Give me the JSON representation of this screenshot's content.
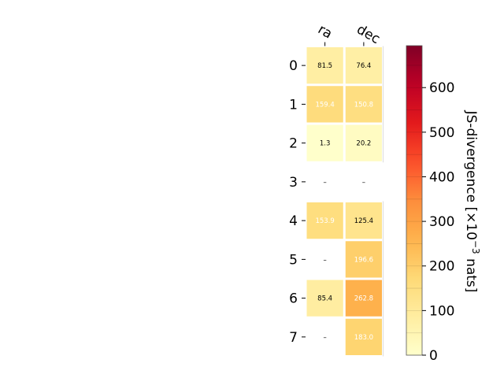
{
  "chart_data": {
    "type": "heatmap",
    "columns": [
      "ra",
      "dec"
    ],
    "rows": [
      "0",
      "1",
      "2",
      "3",
      "4",
      "5",
      "6",
      "7"
    ],
    "values": [
      [
        81.5,
        76.4
      ],
      [
        159.4,
        150.8
      ],
      [
        1.3,
        20.2
      ],
      [
        null,
        null
      ],
      [
        153.9,
        125.4
      ],
      [
        null,
        196.6
      ],
      [
        85.4,
        262.8
      ],
      [
        null,
        183.0
      ]
    ],
    "cell_labels": [
      [
        "81.5",
        "76.4"
      ],
      [
        "159.4",
        "150.8"
      ],
      [
        "1.3",
        "20.2"
      ],
      [
        "–",
        "–"
      ],
      [
        "153.9",
        "125.4"
      ],
      [
        "–",
        "196.6"
      ],
      [
        "85.4",
        "262.8"
      ],
      [
        "–",
        "183.0"
      ]
    ],
    "label_colors": [
      [
        "#000000",
        "#000000"
      ],
      [
        "#ffffff",
        "#ffffff"
      ],
      [
        "#000000",
        "#000000"
      ],
      [
        "#000000",
        "#000000"
      ],
      [
        "#ffffff",
        "#000000"
      ],
      [
        "#000000",
        "#ffffff"
      ],
      [
        "#000000",
        "#ffffff"
      ],
      [
        "#000000",
        "#ffffff"
      ]
    ],
    "colorbar": {
      "label_main": "JS-divergence [×10",
      "label_exp": "−3",
      "label_tail": " nats]",
      "vmin": 0,
      "vmax": 694,
      "ticks": [
        0,
        100,
        200,
        300,
        400,
        500,
        600
      ],
      "colormap": "YlOrRd"
    },
    "grid": false
  }
}
